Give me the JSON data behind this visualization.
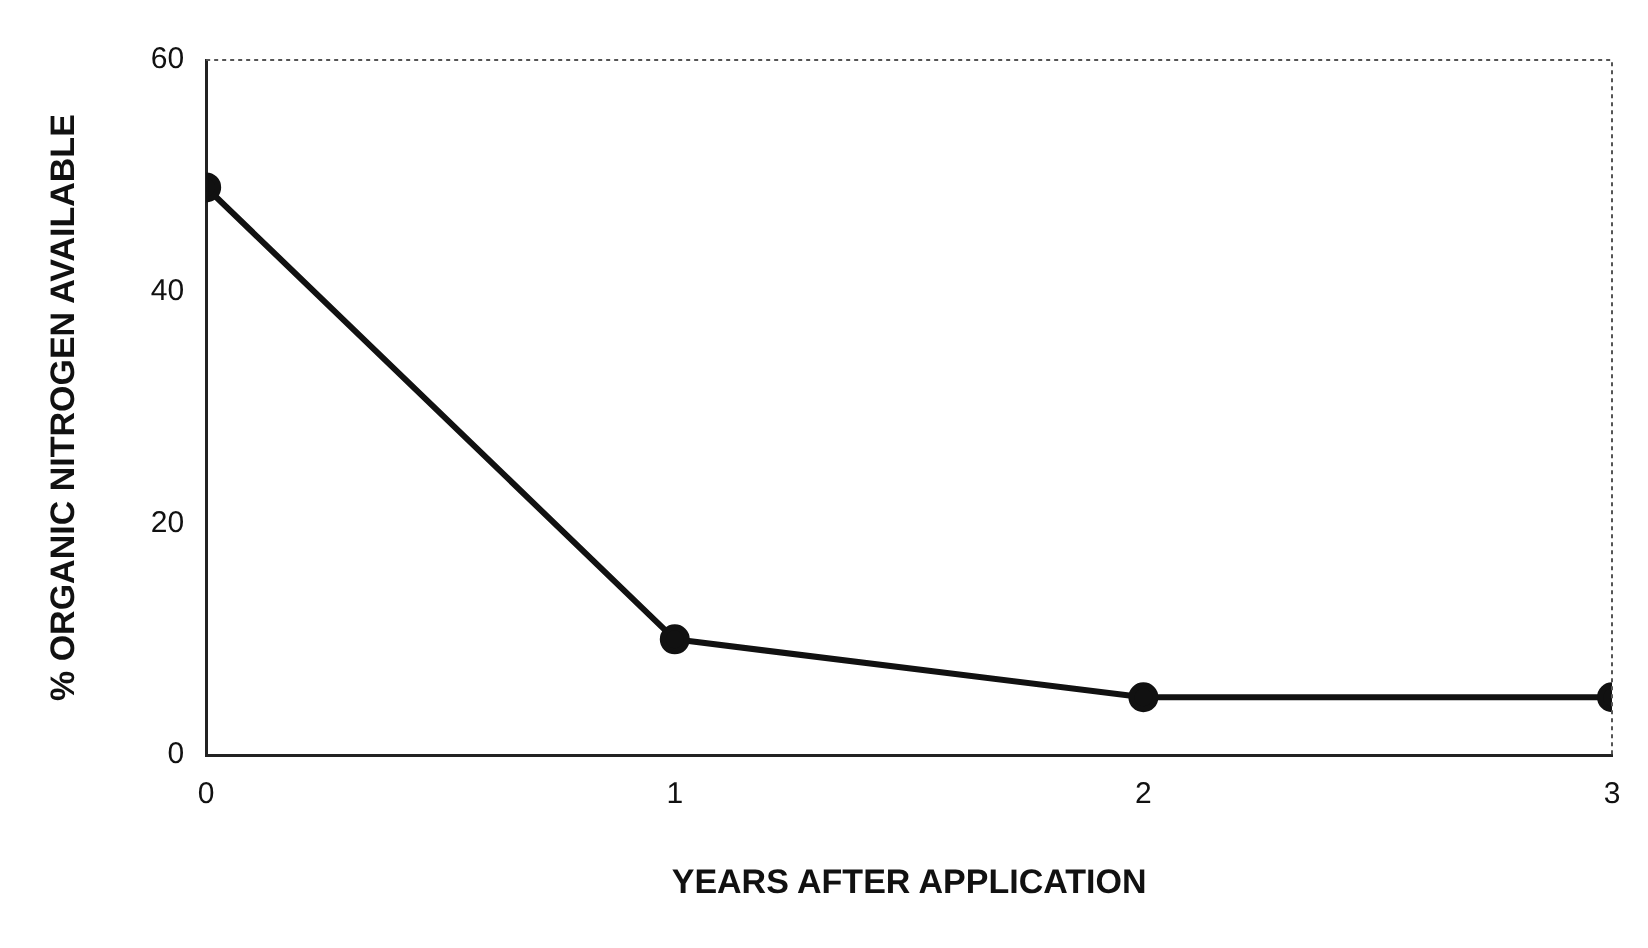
{
  "chart_data": {
    "type": "line",
    "xlabel": "YEARS AFTER APPLICATION",
    "ylabel": "% ORGANIC NITROGEN AVAILABLE",
    "x": [
      0,
      1,
      2,
      3
    ],
    "series": [
      {
        "color": "#111111",
        "values": [
          49,
          10,
          5,
          5
        ]
      }
    ],
    "xlim": [
      0,
      3
    ],
    "xticks": [
      0,
      1,
      2,
      3
    ],
    "ylim": [
      0,
      60
    ],
    "yticks": [
      0,
      20,
      40,
      60
    ],
    "grid": false,
    "legend": false,
    "marker": "circle",
    "line_style": "solid"
  }
}
